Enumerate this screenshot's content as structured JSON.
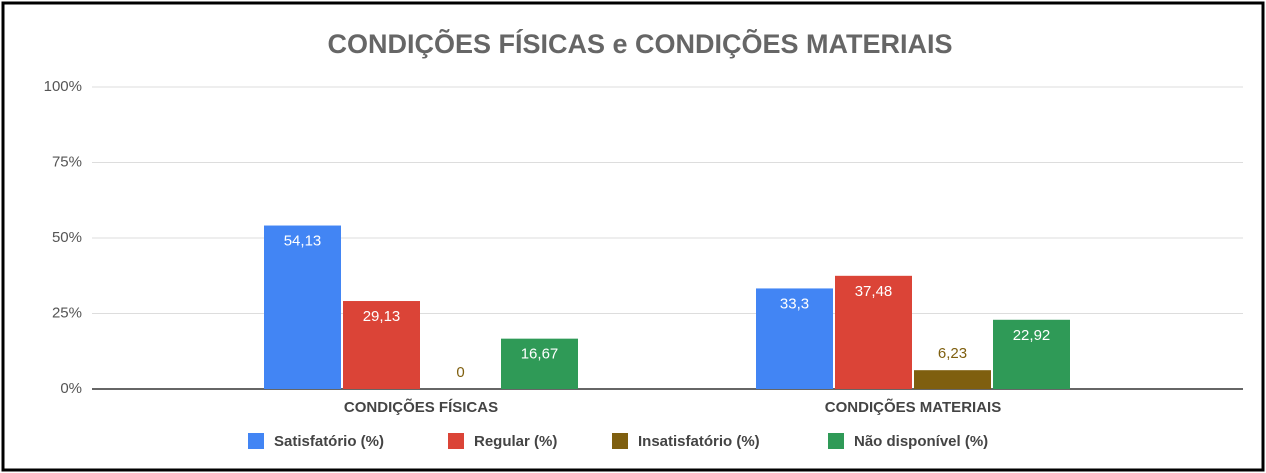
{
  "chart_data": {
    "type": "bar",
    "title": "CONDIÇÕES FÍSICAS e CONDIÇÕES MATERIAIS",
    "categories": [
      "CONDIÇÕES FÍSICAS",
      "CONDIÇÕES MATERIAIS"
    ],
    "series": [
      {
        "name": "Satisfatório (%)",
        "color": "#4285f4",
        "values": [
          54.13,
          33.3
        ],
        "value_labels": [
          "54,13",
          "33,3"
        ]
      },
      {
        "name": "Regular (%)",
        "color": "#db4437",
        "values": [
          29.13,
          37.48
        ],
        "value_labels": [
          "29,13",
          "37,48"
        ]
      },
      {
        "name": "Insatisfatório (%)",
        "color": "#7f5f0f",
        "values": [
          0,
          6.23
        ],
        "value_labels": [
          "0",
          "6,23"
        ]
      },
      {
        "name": "Não disponível (%)",
        "color": "#2f9a57",
        "values": [
          16.67,
          22.92
        ],
        "value_labels": [
          "16,67",
          "22,92"
        ]
      }
    ],
    "ylim": [
      0,
      100
    ],
    "yticks": [
      {
        "value": 0,
        "label": "0%"
      },
      {
        "value": 25,
        "label": "25%"
      },
      {
        "value": 50,
        "label": "50%"
      },
      {
        "value": 75,
        "label": "75%"
      },
      {
        "value": 100,
        "label": "100%"
      }
    ],
    "grid": true,
    "legend": "bottom"
  }
}
